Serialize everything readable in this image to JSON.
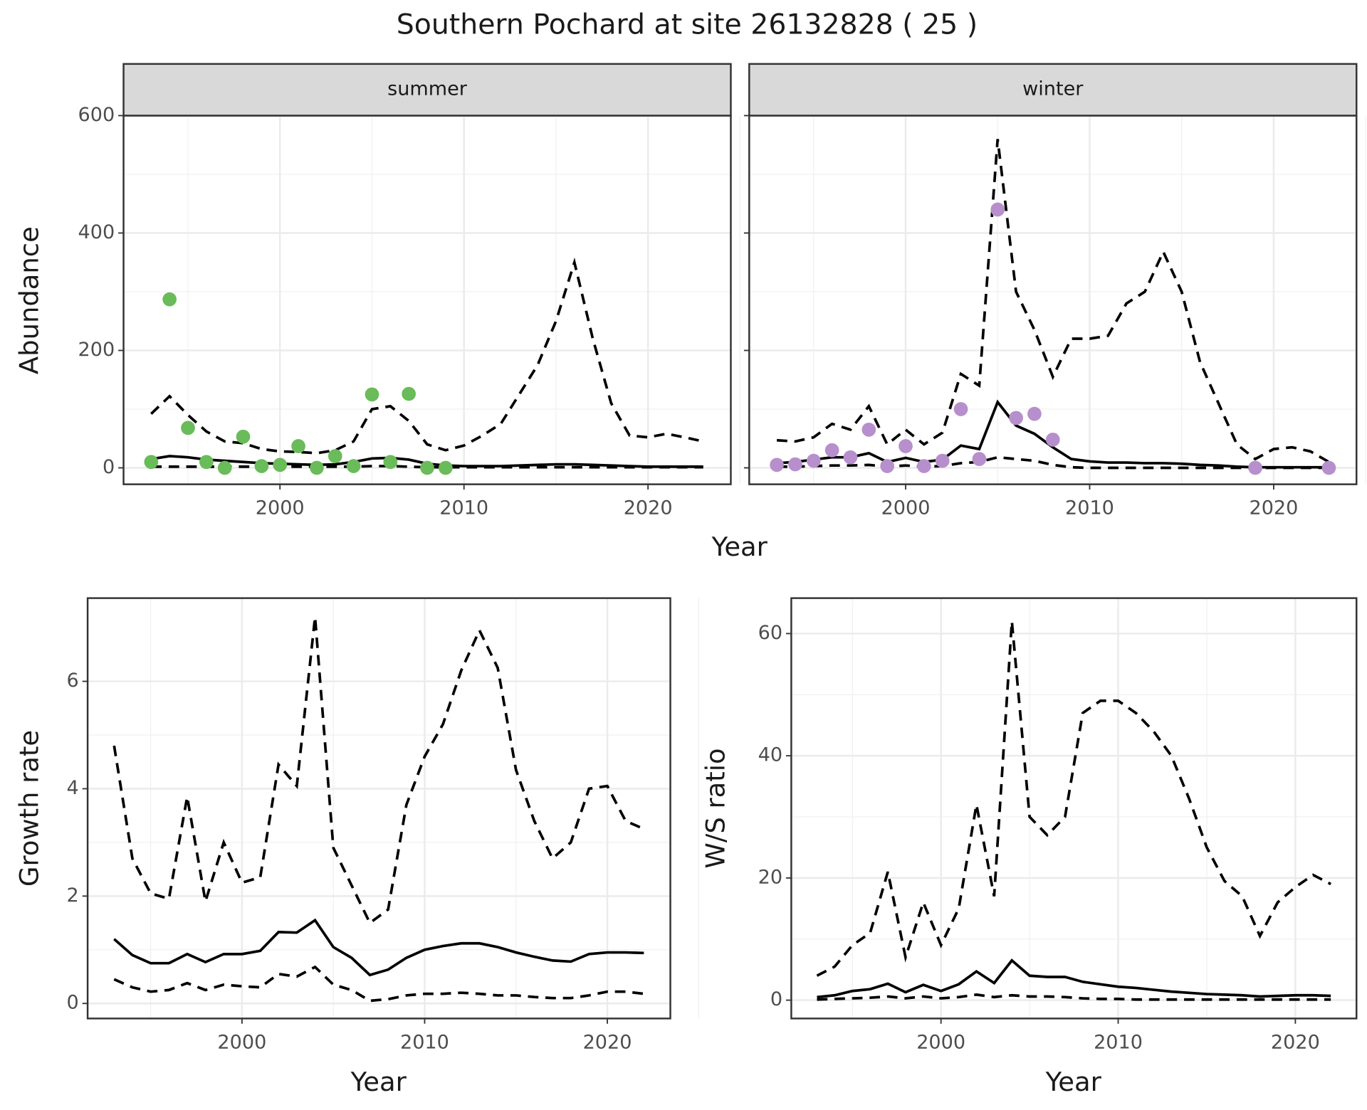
{
  "title": "Southern Pochard at site 26132828 ( 25 )",
  "chart_data": [
    {
      "type": "line",
      "facet": "summer",
      "ylabel": "Abundance",
      "xlabel": "Year",
      "xlim": [
        1991.5,
        2024.5
      ],
      "xticks": [
        2000,
        2010,
        2020
      ],
      "ylim": [
        -28,
        600
      ],
      "yticks": [
        0,
        200,
        400,
        600
      ],
      "grid": true,
      "show_ytick_labels": true,
      "x": [
        1993,
        1994,
        1995,
        1996,
        1997,
        1998,
        1999,
        2000,
        2001,
        2002,
        2003,
        2004,
        2005,
        2006,
        2007,
        2008,
        2009,
        2010,
        2011,
        2012,
        2013,
        2014,
        2015,
        2016,
        2017,
        2018,
        2019,
        2020,
        2021,
        2022,
        2023
      ],
      "series": [
        {
          "style": "solid",
          "color": "#000000",
          "values": [
            15,
            20,
            18,
            14,
            12,
            10,
            8,
            7,
            6,
            5,
            6,
            10,
            16,
            17,
            14,
            7,
            4,
            3,
            3,
            3,
            4,
            5,
            6,
            6,
            5,
            4,
            3,
            2,
            2,
            2,
            2
          ]
        },
        {
          "style": "dashed",
          "color": "#000000",
          "values": [
            92,
            122,
            90,
            62,
            45,
            42,
            32,
            28,
            27,
            25,
            30,
            45,
            100,
            105,
            80,
            40,
            30,
            38,
            55,
            75,
            125,
            175,
            250,
            350,
            220,
            110,
            55,
            52,
            58,
            52,
            45
          ]
        },
        {
          "style": "dashed",
          "color": "#000000",
          "values": [
            2,
            2,
            2,
            2,
            2,
            2,
            2,
            2,
            2,
            2,
            2,
            2,
            3,
            3,
            2,
            1,
            1,
            1,
            1,
            1,
            1,
            1,
            1,
            1,
            1,
            1,
            1,
            1,
            1,
            1,
            1
          ]
        }
      ],
      "points": {
        "color": "#6abb59",
        "x": [
          1993,
          1994,
          1995,
          1996,
          1997,
          1998,
          1999,
          2000,
          2001,
          2002,
          2003,
          2004,
          2005,
          2006,
          2007,
          2008,
          2009
        ],
        "values": [
          10,
          287,
          68,
          10,
          0,
          53,
          3,
          5,
          37,
          0,
          20,
          3,
          125,
          10,
          126,
          0,
          0
        ]
      }
    },
    {
      "type": "line",
      "facet": "winter",
      "xlim": [
        1991.5,
        2024.5
      ],
      "xticks": [
        2000,
        2010,
        2020
      ],
      "ylim": [
        -28,
        600
      ],
      "yticks": [
        0,
        200,
        400,
        600
      ],
      "grid": true,
      "show_ytick_labels": false,
      "x": [
        1993,
        1994,
        1995,
        1996,
        1997,
        1998,
        1999,
        2000,
        2001,
        2002,
        2003,
        2004,
        2005,
        2006,
        2007,
        2008,
        2009,
        2010,
        2011,
        2012,
        2013,
        2014,
        2015,
        2016,
        2017,
        2018,
        2019,
        2020,
        2021,
        2022,
        2023
      ],
      "series": [
        {
          "style": "solid",
          "color": "#000000",
          "values": [
            8,
            10,
            14,
            18,
            18,
            25,
            10,
            17,
            10,
            14,
            38,
            32,
            112,
            72,
            58,
            35,
            15,
            11,
            9,
            9,
            8,
            8,
            7,
            5,
            4,
            2,
            1,
            1,
            1,
            1,
            1
          ]
        },
        {
          "style": "dashed",
          "color": "#000000",
          "values": [
            47,
            45,
            52,
            75,
            65,
            105,
            40,
            65,
            40,
            60,
            160,
            140,
            560,
            300,
            235,
            155,
            220,
            220,
            225,
            280,
            300,
            368,
            300,
            180,
            110,
            40,
            15,
            32,
            35,
            28,
            10
          ]
        },
        {
          "style": "dashed",
          "color": "#000000",
          "values": [
            2,
            2,
            3,
            4,
            4,
            5,
            2,
            4,
            2,
            3,
            8,
            10,
            18,
            15,
            12,
            5,
            1,
            0,
            0,
            0,
            0,
            0,
            0,
            0,
            0,
            0,
            0,
            0,
            0,
            0,
            0
          ]
        }
      ],
      "points": {
        "color": "#b78fcc",
        "x": [
          1993,
          1994,
          1995,
          1996,
          1997,
          1998,
          1999,
          2000,
          2001,
          2002,
          2003,
          2004,
          2005,
          2006,
          2007,
          2008,
          2019,
          2023
        ],
        "values": [
          5,
          6,
          12,
          30,
          18,
          65,
          3,
          37,
          3,
          12,
          100,
          15,
          440,
          85,
          92,
          48,
          0,
          0
        ]
      }
    },
    {
      "type": "line",
      "ylabel": "Growth rate",
      "xlabel": "Year",
      "xlim": [
        1991.55,
        2023.45
      ],
      "xticks": [
        2000,
        2010,
        2020
      ],
      "ylim": [
        -0.28,
        7.55
      ],
      "yticks": [
        0,
        2,
        4,
        6
      ],
      "grid": true,
      "show_ytick_labels": true,
      "x": [
        1993,
        1994,
        1995,
        1996,
        1997,
        1998,
        1999,
        2000,
        2001,
        2002,
        2003,
        2004,
        2005,
        2006,
        2007,
        2008,
        2009,
        2010,
        2011,
        2012,
        2013,
        2014,
        2015,
        2016,
        2017,
        2018,
        2019,
        2020,
        2021,
        2022
      ],
      "series": [
        {
          "style": "solid",
          "color": "#000000",
          "values": [
            1.2,
            0.9,
            0.75,
            0.75,
            0.92,
            0.77,
            0.92,
            0.92,
            0.98,
            1.33,
            1.32,
            1.55,
            1.05,
            0.85,
            0.53,
            0.63,
            0.85,
            1.0,
            1.07,
            1.12,
            1.12,
            1.05,
            0.95,
            0.87,
            0.8,
            0.78,
            0.92,
            0.95,
            0.95,
            0.94
          ]
        },
        {
          "style": "dashed",
          "color": "#000000",
          "values": [
            4.8,
            2.7,
            2.05,
            1.95,
            3.85,
            1.9,
            3.0,
            2.25,
            2.35,
            4.45,
            4.05,
            7.2,
            2.9,
            2.2,
            1.5,
            1.75,
            3.7,
            4.6,
            5.2,
            6.2,
            6.95,
            6.25,
            4.35,
            3.4,
            2.7,
            3.0,
            4.0,
            4.05,
            3.4,
            3.25
          ]
        },
        {
          "style": "dashed",
          "color": "#000000",
          "values": [
            0.45,
            0.3,
            0.22,
            0.25,
            0.38,
            0.25,
            0.35,
            0.32,
            0.3,
            0.55,
            0.5,
            0.68,
            0.35,
            0.25,
            0.05,
            0.08,
            0.15,
            0.18,
            0.18,
            0.2,
            0.18,
            0.15,
            0.15,
            0.12,
            0.1,
            0.1,
            0.15,
            0.22,
            0.22,
            0.18
          ]
        }
      ]
    },
    {
      "type": "line",
      "ylabel": "W/S ratio",
      "xlabel": "Year",
      "xlim": [
        1991.55,
        2023.45
      ],
      "xticks": [
        2000,
        2010,
        2020
      ],
      "ylim": [
        -3.0,
        65.8
      ],
      "yticks": [
        0,
        20,
        40,
        60
      ],
      "grid": true,
      "show_ytick_labels": true,
      "x": [
        1993,
        1994,
        1995,
        1996,
        1997,
        1998,
        1999,
        2000,
        2001,
        2002,
        2003,
        2004,
        2005,
        2006,
        2007,
        2008,
        2009,
        2010,
        2011,
        2012,
        2013,
        2014,
        2015,
        2016,
        2017,
        2018,
        2019,
        2020,
        2021,
        2022
      ],
      "series": [
        {
          "style": "solid",
          "color": "#000000",
          "values": [
            0.5,
            0.8,
            1.5,
            1.8,
            2.7,
            1.3,
            2.5,
            1.5,
            2.6,
            4.7,
            2.8,
            6.5,
            4,
            3.8,
            3.8,
            3,
            2.6,
            2.2,
            2,
            1.7,
            1.4,
            1.2,
            1,
            0.9,
            0.8,
            0.6,
            0.7,
            0.8,
            0.8,
            0.7
          ]
        },
        {
          "style": "dashed",
          "color": "#000000",
          "values": [
            4,
            5.5,
            9,
            11,
            21,
            7,
            16,
            9,
            15,
            32,
            17,
            62,
            30,
            27,
            30,
            47,
            49,
            49,
            47,
            44,
            40,
            33,
            25,
            19.5,
            17,
            10.5,
            16,
            18.5,
            20.5,
            19
          ]
        },
        {
          "style": "dashed",
          "color": "#000000",
          "values": [
            0.1,
            0.2,
            0.3,
            0.4,
            0.6,
            0.3,
            0.6,
            0.3,
            0.5,
            0.9,
            0.5,
            0.8,
            0.6,
            0.6,
            0.5,
            0.3,
            0.2,
            0.2,
            0.1,
            0.1,
            0.1,
            0.1,
            0.1,
            0.1,
            0.1,
            0.1,
            0.1,
            0.1,
            0.1,
            0.1
          ]
        }
      ]
    }
  ]
}
